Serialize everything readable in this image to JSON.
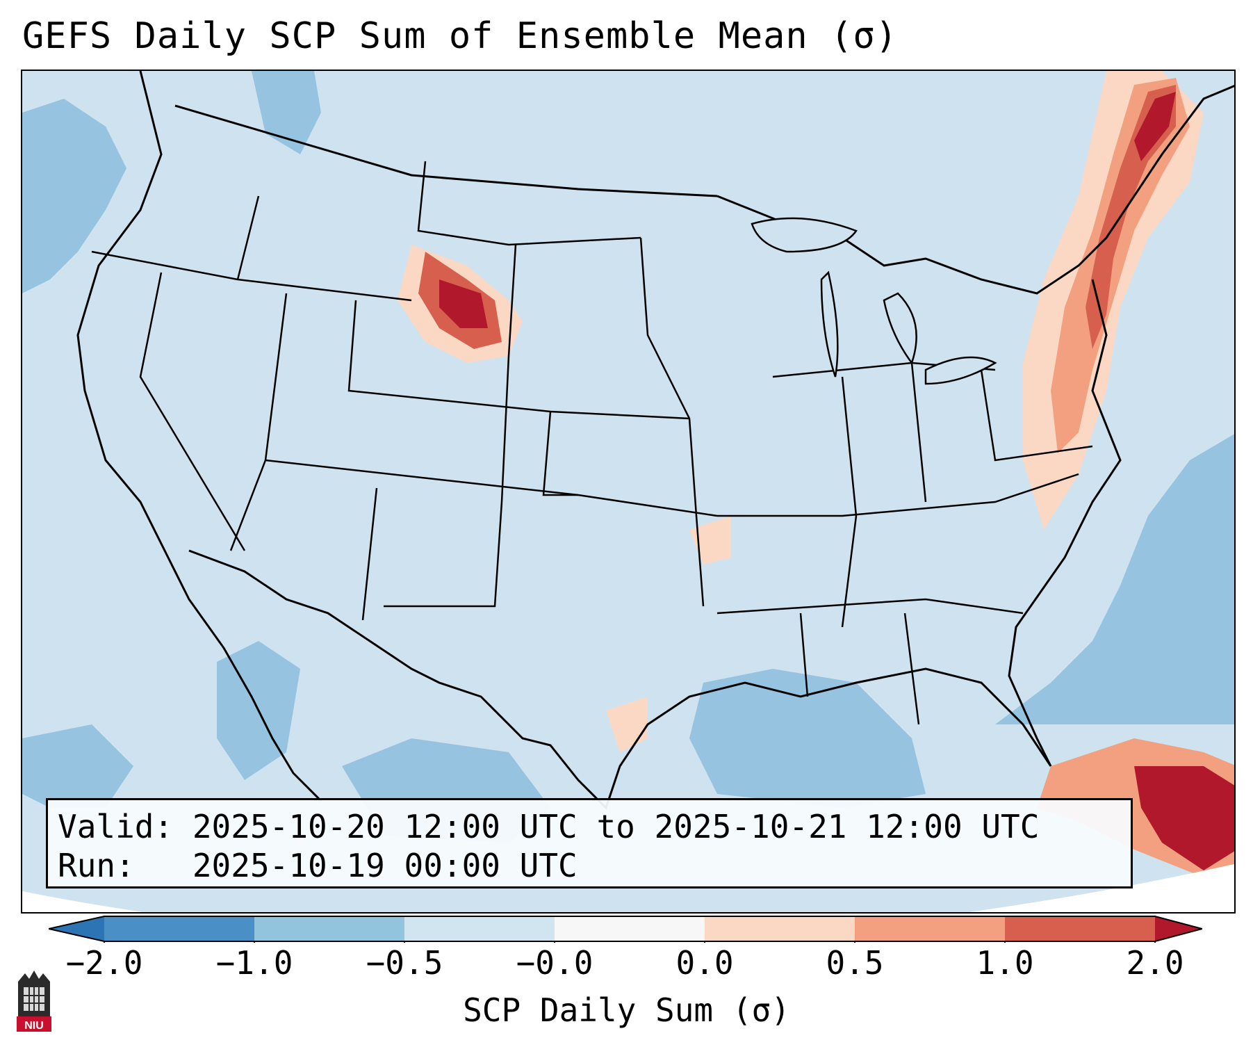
{
  "title": "GEFS Daily SCP Sum of Ensemble Mean (σ)",
  "valid_text": "Valid: 2025-10-20 12:00 UTC to 2025-10-21 12:00 UTC",
  "run_text": "Run:   2025-10-19 00:00 UTC",
  "colorbar": {
    "label": "SCP Daily Sum (σ)",
    "ticks": [
      "−2.0",
      "−1.0",
      "−0.5",
      "−0.0",
      "0.0",
      "0.5",
      "1.0",
      "2.0"
    ],
    "colors": [
      "#2d74b5",
      "#6aa8d3",
      "#a6cde4",
      "#d1e5f0",
      "#fbddcb",
      "#f3a483",
      "#d6604d",
      "#b2182b"
    ],
    "extend": "both"
  },
  "logo_text": "NIU",
  "map_colors": {
    "base": "#cfe2ef",
    "neg_mid": "#96c3df",
    "neg_strong": "#6aa8d3",
    "pos_light": "#fbd8c3",
    "pos_mid": "#f2a080",
    "pos_strong": "#d6604d",
    "pos_max": "#b2182b",
    "outline": "#000000"
  }
}
